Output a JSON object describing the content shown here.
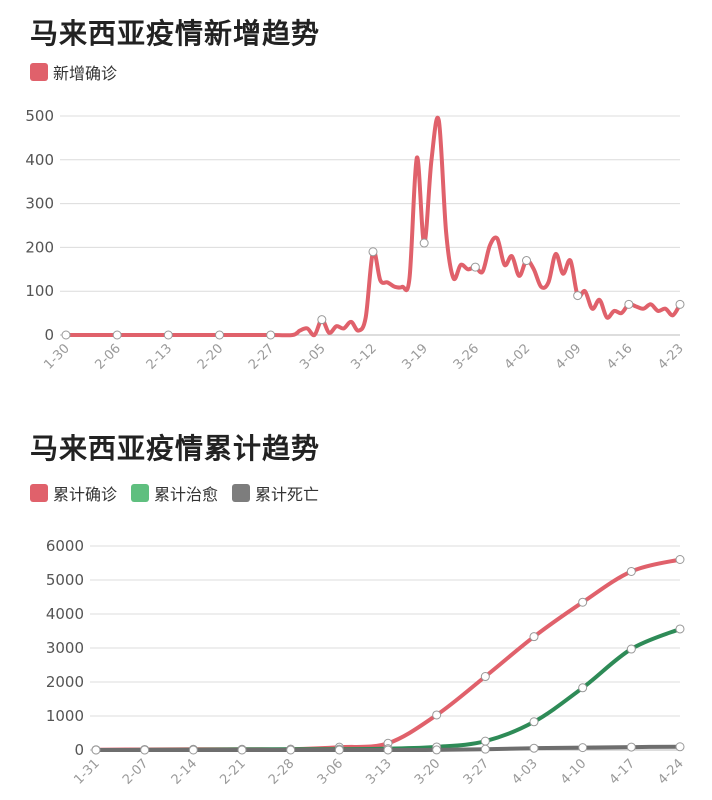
{
  "charts": [
    {
      "title": "马来西亚疫情新增趋势",
      "legend": [
        {
          "label": "新增确诊",
          "color": "#e0616b"
        }
      ],
      "chart_data": {
        "type": "line",
        "title": "马来西亚疫情新增趋势",
        "xlabel": "",
        "ylabel": "",
        "ylim": [
          0,
          500
        ],
        "yticks": [
          "0",
          "100",
          "200",
          "300",
          "400",
          "500"
        ],
        "xticks": [
          "1-30",
          "2-06",
          "2-13",
          "2-20",
          "2-27",
          "3-05",
          "3-12",
          "3-19",
          "3-26",
          "4-02",
          "4-09",
          "4-16",
          "4-23"
        ],
        "grid": true,
        "legend_position": "top-left",
        "x": [
          0,
          7,
          14,
          21,
          28,
          31,
          32,
          33,
          34,
          35,
          36,
          37,
          38,
          39,
          40,
          41,
          42,
          43,
          44,
          45,
          46,
          47,
          48,
          49,
          50,
          51,
          52,
          53,
          54,
          55,
          56,
          57,
          58,
          59,
          60,
          61,
          62,
          63,
          64,
          65,
          66,
          67,
          68,
          69,
          70,
          71,
          72,
          73,
          74,
          75,
          76,
          77,
          78,
          79,
          80,
          81,
          82,
          83,
          84
        ],
        "series": [
          {
            "name": "新增确诊",
            "color": "#e0616b",
            "values": [
              0,
              0,
              0,
              0,
              0,
              0,
              10,
              15,
              0,
              35,
              5,
              20,
              15,
              30,
              10,
              40,
              190,
              125,
              120,
              110,
              110,
              130,
              405,
              210,
              400,
              490,
              235,
              130,
              160,
              150,
              155,
              145,
              205,
              220,
              160,
              180,
              135,
              170,
              150,
              110,
              120,
              185,
              140,
              170,
              90,
              100,
              60,
              80,
              40,
              55,
              50,
              70,
              65,
              60,
              70,
              55,
              60,
              45,
              70
            ],
            "markers_at": [
              0,
              7,
              14,
              21,
              28,
              35,
              42,
              49,
              56,
              63,
              70,
              77,
              84
            ]
          }
        ]
      }
    },
    {
      "title": "马来西亚疫情累计趋势",
      "legend": [
        {
          "label": "累计确诊",
          "color": "#e0616b"
        },
        {
          "label": "累计治愈",
          "color": "#5fbf7f"
        },
        {
          "label": "累计死亡",
          "color": "#7d7d7d"
        }
      ],
      "chart_data": {
        "type": "line",
        "title": "马来西亚疫情累计趋势",
        "xlabel": "",
        "ylabel": "",
        "ylim": [
          0,
          6000
        ],
        "yticks": [
          "0",
          "1000",
          "2000",
          "3000",
          "4000",
          "5000",
          "6000"
        ],
        "xticks": [
          "1-31",
          "2-07",
          "2-14",
          "2-21",
          "2-28",
          "3-06",
          "3-13",
          "3-20",
          "3-27",
          "4-03",
          "4-10",
          "4-17",
          "4-24"
        ],
        "grid": true,
        "legend_position": "top-left",
        "x": [
          0,
          7,
          14,
          21,
          28,
          35,
          42,
          49,
          56,
          63,
          70,
          77,
          84
        ],
        "series": [
          {
            "name": "累计确诊",
            "color": "#e0616b",
            "values": [
              8,
              16,
              22,
              22,
              25,
              83,
              197,
              1030,
              2161,
              3333,
              4346,
              5251,
              5603
            ]
          },
          {
            "name": "累计治愈",
            "color": "#2e8b57",
            "values": [
              0,
              2,
              10,
              18,
              22,
              24,
              40,
              90,
              260,
              830,
              1830,
              2970,
              3560
            ]
          },
          {
            "name": "累计死亡",
            "color": "#6e6e6e",
            "values": [
              0,
              0,
              0,
              0,
              0,
              0,
              1,
              2,
              24,
              53,
              70,
              86,
              95
            ]
          }
        ]
      }
    }
  ]
}
